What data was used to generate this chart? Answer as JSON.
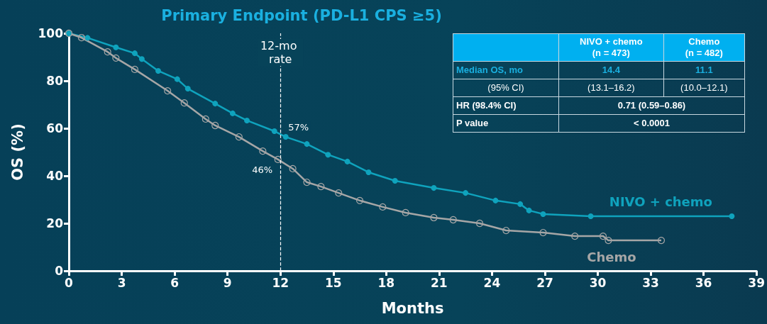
{
  "chart_data": {
    "type": "line",
    "title": "Primary Endpoint (PD-L1 CPS ≥5)",
    "xlabel": "Months",
    "ylabel": "OS (%)",
    "xlim": [
      0,
      39
    ],
    "xticks": [
      0,
      3,
      6,
      9,
      12,
      15,
      18,
      21,
      24,
      27,
      30,
      33,
      36,
      39
    ],
    "ylim": [
      0,
      100
    ],
    "yticks": [
      0,
      20,
      40,
      60,
      80,
      100
    ],
    "grid": false,
    "legend": false,
    "marker": "circle",
    "line_style": "solid",
    "ref_lines": [
      {
        "axis": "x",
        "value": 12,
        "label": "12-mo rate",
        "color": "#ffffff",
        "line_style": "dashed"
      }
    ],
    "annotations": [
      "NIVO + chemo\n(n = 473)",
      "Chemo\n(n = 482)",
      "Median OS, mo",
      "14.4",
      "11.1",
      "(95% CI)",
      "(13.1–16.2)",
      "(10.0–12.1)",
      "HR (98.4% CI)",
      "0.71 (0.59–0.86)",
      "P value",
      "< 0.0001",
      {
        "text": "57%",
        "x": 12,
        "y": 57
      },
      {
        "text": "46%",
        "x": 12,
        "y": 46
      }
    ],
    "series": [
      {
        "name": "NIVO + chemo",
        "color": "#0fa3bd",
        "x": [
          0,
          1.06,
          2.67,
          3.74,
          4.14,
          5.07,
          6.15,
          6.75,
          8.3,
          9.29,
          10.1,
          11.66,
          12.3,
          13.5,
          14.7,
          15.8,
          17.0,
          18.5,
          20.7,
          22.5,
          24.2,
          25.6,
          26.1,
          26.9,
          29.6,
          37.6
        ],
        "values": [
          100,
          98.1,
          94.1,
          91.6,
          89.2,
          84.2,
          80.7,
          76.7,
          70.4,
          66.3,
          63.3,
          58.8,
          56.4,
          53.4,
          48.9,
          46.0,
          41.5,
          37.9,
          34.9,
          32.8,
          29.6,
          28.1,
          25.4,
          23.9,
          23.0,
          23.0
        ]
      },
      {
        "name": "Chemo",
        "color": "#a6a6a6",
        "x": [
          0,
          0.72,
          2.2,
          2.67,
          3.74,
          5.6,
          6.55,
          7.76,
          8.3,
          9.65,
          11.0,
          11.86,
          12.7,
          13.5,
          14.3,
          15.3,
          16.5,
          17.8,
          19.1,
          20.7,
          21.8,
          23.3,
          24.8,
          26.9,
          28.7,
          30.3,
          30.6,
          33.6
        ],
        "values": [
          100,
          98.2,
          92.2,
          89.6,
          84.8,
          75.8,
          70.7,
          63.9,
          61.2,
          56.4,
          50.4,
          46.9,
          43.0,
          37.3,
          35.5,
          32.8,
          29.6,
          26.9,
          24.5,
          22.4,
          21.5,
          20.0,
          17.0,
          16.1,
          14.6,
          14.6,
          12.8,
          12.8
        ]
      }
    ]
  }
}
